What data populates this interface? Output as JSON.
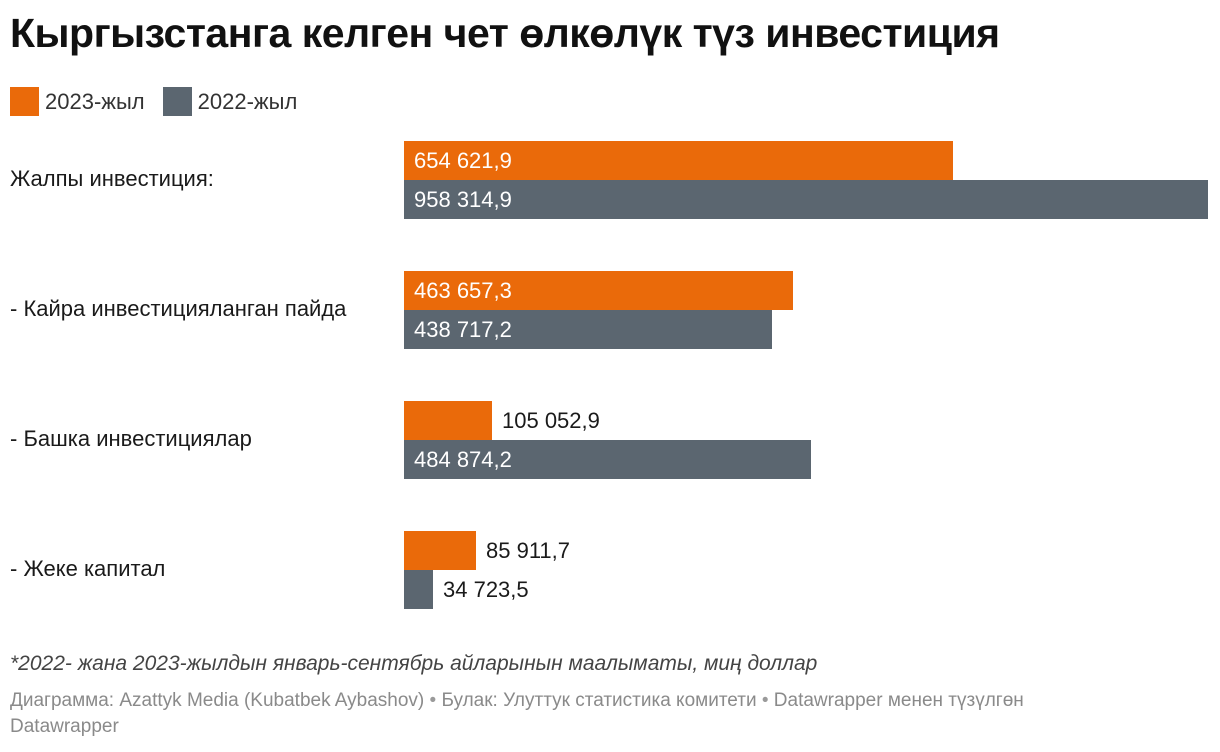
{
  "title": "Кыргызстанга келген чет өлкөлүк түз инвестиция",
  "legend": [
    {
      "label": "2023-жыл",
      "color": "#ea6a0a"
    },
    {
      "label": "2022-жыл",
      "color": "#5b6670"
    }
  ],
  "chart_data": {
    "type": "bar",
    "orientation": "horizontal",
    "title": "Кыргызстанга келген чет өлкөлүк түз инвестиция",
    "categories": [
      "Жалпы инвестиция:",
      "- Кайра инвестицияланган пайда",
      "- Башка инвестициялар",
      "- Жеке капитал"
    ],
    "series": [
      {
        "name": "2023-жыл",
        "color": "#ea6a0a",
        "values": [
          654621.9,
          463657.3,
          105052.9,
          85911.7
        ],
        "labels": [
          "654 621,9",
          "463 657,3",
          "105 052,9",
          "85 911,7"
        ]
      },
      {
        "name": "2022-жыл",
        "color": "#5b6670",
        "values": [
          958314.9,
          438717.2,
          484874.2,
          34723.5
        ],
        "labels": [
          "958 314,9",
          "438 717,2",
          "484 874,2",
          "34 723,5"
        ]
      }
    ],
    "xlim": [
      0,
      958314.9
    ],
    "xlabel": "",
    "ylabel": ""
  },
  "footer": {
    "note": "*2022- жана 2023-жылдын январь-сентябрь айларынын маалыматы, миң доллар",
    "credit": "Диаграмма: Azattyk Media (Kubatbek Aybashov)",
    "separator": "•",
    "source": "Булак: Улуттук статистика комитети",
    "made_with": "Datawrapper менен түзүлгөн",
    "brand": "Datawrapper"
  }
}
